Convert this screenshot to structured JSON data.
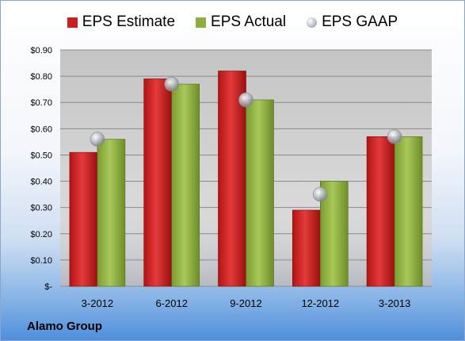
{
  "company_label": "Alamo Group",
  "chart_data": {
    "type": "bar",
    "categories": [
      "3-2012",
      "6-2012",
      "9-2012",
      "12-2012",
      "3-2013"
    ],
    "series": [
      {
        "name": "EPS Estimate",
        "kind": "bar",
        "color": "#cc1f1f",
        "values": [
          0.51,
          0.79,
          0.82,
          0.29,
          0.57
        ]
      },
      {
        "name": "EPS Actual",
        "kind": "bar",
        "color": "#8db03c",
        "values": [
          0.56,
          0.77,
          0.71,
          0.4,
          0.57
        ]
      },
      {
        "name": "EPS GAAP",
        "kind": "marker",
        "color": "#b8bdc6",
        "values": [
          0.56,
          0.77,
          0.71,
          0.35,
          0.57
        ]
      }
    ],
    "ylim": [
      0,
      0.9
    ],
    "yticks": [
      0,
      0.1,
      0.2,
      0.3,
      0.4,
      0.5,
      0.6,
      0.7,
      0.8,
      0.9
    ],
    "ytick_labels": [
      "$-",
      "$0.10",
      "$0.20",
      "$0.30",
      "$0.40",
      "$0.50",
      "$0.60",
      "$0.70",
      "$0.80",
      "$0.90"
    ],
    "grid": true,
    "legend_position": "top"
  }
}
